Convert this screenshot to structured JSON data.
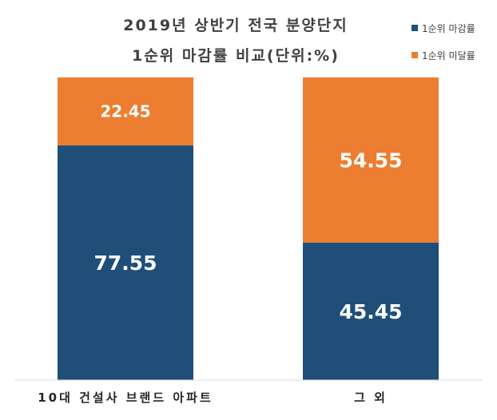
{
  "chart_data": {
    "type": "bar",
    "stacked": true,
    "title": "2019년 상반기 전국 분양단지",
    "subtitle": "1순위 마감률 비교(단위:%)",
    "categories": [
      "10대 건설사 브랜드 아파트",
      "그 외"
    ],
    "series": [
      {
        "name": "1순위 마감률",
        "values": [
          77.55,
          45.45
        ],
        "color": "#1f4e79"
      },
      {
        "name": "1순위 미달률",
        "values": [
          22.45,
          54.55
        ],
        "color": "#ed7d31"
      }
    ],
    "ylim": [
      0,
      100
    ],
    "legend": "top-right",
    "grid": false
  }
}
